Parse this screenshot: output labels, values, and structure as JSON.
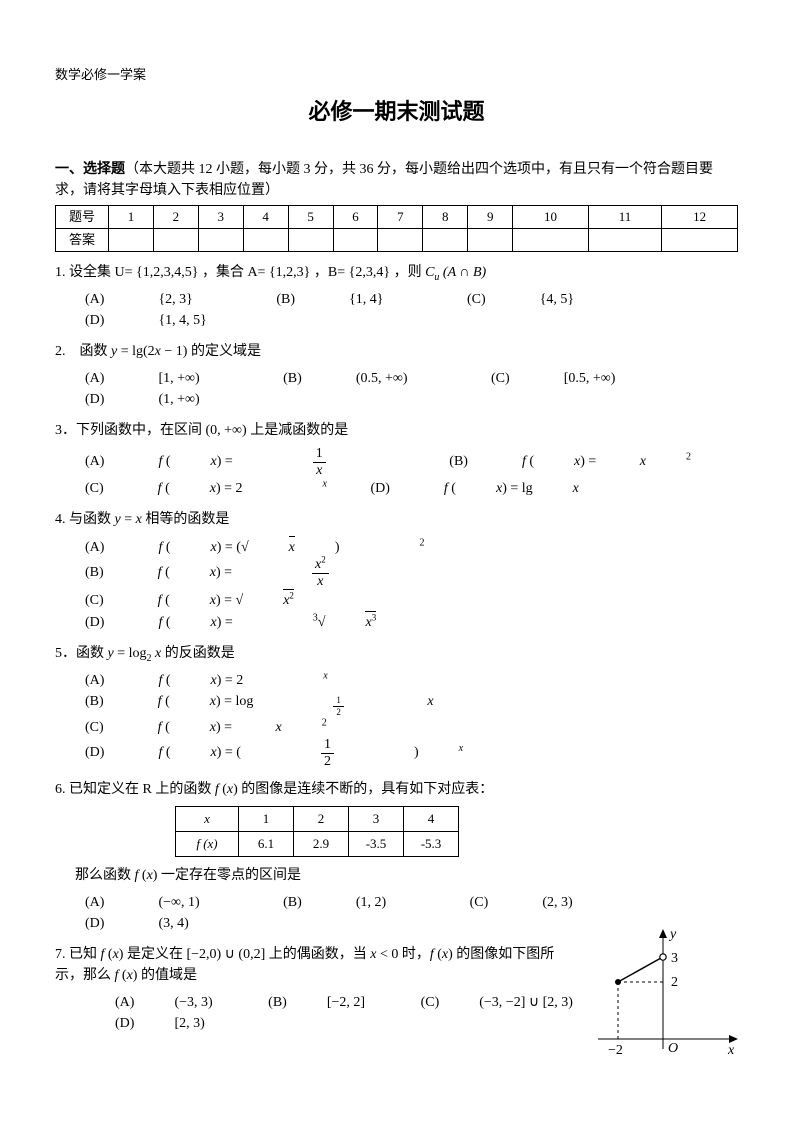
{
  "header": {
    "subject": "数学必修一学案"
  },
  "title": "必修一期末测试题",
  "section1": {
    "label": "一、选择题",
    "desc": "（本大题共 12 小题，每小题 3 分，共 36 分，每小题给出四个选项中，有且只有一个符合题目要求，请将其字母填入下表相应位置）"
  },
  "ans_table": {
    "row1_label": "题号",
    "row2_label": "答案",
    "nums": [
      "1",
      "2",
      "3",
      "4",
      "5",
      "6",
      "7",
      "8",
      "9",
      "10",
      "11",
      "12"
    ]
  },
  "q1": {
    "text_pre": "1. 设全集 U= {1,2,3,4,5} ，集合 A= {1,2,3} ，B= {2,3,4} ，则 ",
    "expr": "C<sub>u</sub> (A ∩ B)",
    "a": "{2, 3}",
    "b": "{1, 4}",
    "c": "{4, 5}",
    "d": "{1, 4, 5}"
  },
  "q2": {
    "text_pre": "2.　函数 ",
    "expr": "<span class='math'>y</span> <span class='rm'>= lg(2</span><span class='math'>x</span><span class='rm'> − 1)</span>",
    "text_post": " 的定义域是",
    "a": "[1, +∞)",
    "b": "(0.5, +∞)",
    "c": "[0.5, +∞)",
    "d": "(1, +∞)"
  },
  "q3": {
    "text_pre": "3．下列函数中，在区间 ",
    "range": "(0, +∞)",
    "text_post": " 上是减函数的是"
  },
  "q4": {
    "text_pre": "4. 与函数 ",
    "expr": "<span class='math'>y</span> = <span class='math'>x</span>",
    "text_post": " 相等的函数是"
  },
  "q5": {
    "text_pre": "5．函数 ",
    "expr": "<span class='math'>y</span> = log<sub>2</sub> <span class='math'>x</span>",
    "text_post": " 的反函数是"
  },
  "q6": {
    "text": "6. 已知定义在 R 上的函数 <span class='math'>f</span> (<span class='math'>x</span>) 的图像是连续不断的，具有如下对应表：",
    "table": {
      "headers": [
        "x",
        "1",
        "2",
        "3",
        "4"
      ],
      "row_label": "f (x)",
      "values": [
        "6.1",
        "2.9",
        "-3.5",
        "-5.3"
      ]
    },
    "line2": "那么函数 <span class='math'>f</span> (<span class='math'>x</span>) 一定存在零点的区间是",
    "a": "(−∞, 1)",
    "b": "(1, 2)",
    "c": "(2, 3)",
    "d": "(3, 4)"
  },
  "q7": {
    "text": "7. 已知 <span class='math'>f</span> (<span class='math'>x</span>) 是定义在 [−2,0) ∪ (0,2] 上的偶函数，当 <span class='math'>x</span> < 0 时，<span class='math'>f</span> (<span class='math'>x</span>) 的图像如下图所示，那么 <span class='math'>f</span> (<span class='math'>x</span>) 的值域是",
    "a": "(−3, 3)",
    "b": "[−2, 2]",
    "c": "(−3, −2] ∪ [2, 3)",
    "d": "[2, 3)"
  },
  "graph": {
    "y_label": "y",
    "x_label": "x",
    "origin": "O",
    "y_mark_3": "3",
    "y_mark_2": "2",
    "x_mark_neg2": "−2",
    "axis_color": "#000000",
    "dash_color": "#000000",
    "point_fill": "#000000",
    "line_width": 1.2,
    "open_circle_r": 3,
    "closed_circle_r": 3
  }
}
